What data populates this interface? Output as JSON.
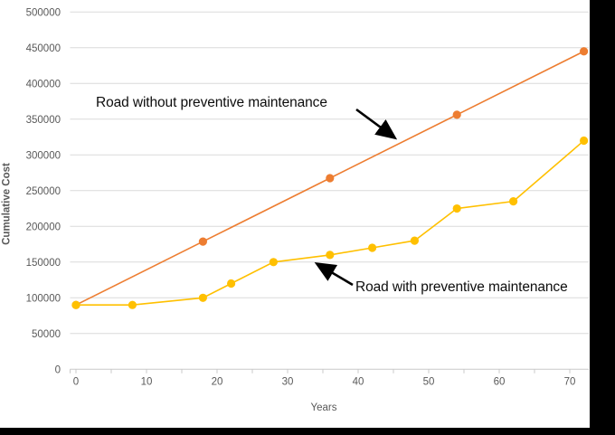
{
  "chart_data": {
    "type": "line",
    "title": "",
    "xlabel": "Years",
    "ylabel": "Cumulative Cost",
    "xlim": [
      0,
      72.7
    ],
    "ylim": [
      0,
      500000
    ],
    "x_ticks": [
      0,
      10,
      20,
      30,
      40,
      50,
      60,
      70
    ],
    "x_minor_tick_step": 5,
    "x_minor_tick_max": 70,
    "y_ticks": [
      0,
      50000,
      100000,
      150000,
      200000,
      250000,
      300000,
      350000,
      400000,
      450000,
      500000
    ],
    "grid": "horizontal",
    "legend_position": "none",
    "series": [
      {
        "name": "Road without preventive maintenance",
        "color": "#ED7D31",
        "x": [
          0,
          18,
          36,
          54,
          72
        ],
        "y": [
          90000,
          178750,
          267500,
          356250,
          445000
        ]
      },
      {
        "name": "Road with preventive maintenance",
        "color": "#FFC000",
        "x": [
          0,
          8,
          18,
          22,
          28,
          36,
          42,
          48,
          54,
          62,
          72
        ],
        "y": [
          90000,
          90000,
          100000,
          120000,
          150000,
          160000,
          170000,
          180000,
          225000,
          235000,
          320000
        ]
      }
    ],
    "annotations": [
      {
        "text": "Road without preventive maintenance",
        "points_to_series": "Road without preventive maintenance"
      },
      {
        "text": "Road with preventive maintenance",
        "points_to_series": "Road with preventive maintenance"
      }
    ]
  },
  "colors": {
    "series_without_pm": "#ED7D31",
    "series_with_pm": "#FFC000",
    "gridline": "#DADADA",
    "axis": "#C9C9C9",
    "tick_label": "#595959",
    "annotation_text": "#0d0d0d",
    "arrow": "#000000",
    "background": "#FFFFFF",
    "crop_bar": "#000000"
  }
}
